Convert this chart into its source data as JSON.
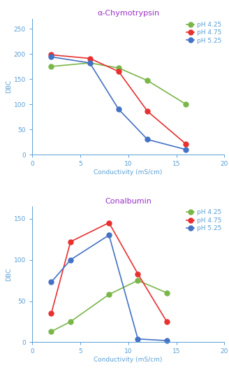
{
  "chart1": {
    "title": "α-Chymotrypsin",
    "series": [
      {
        "label": "pH 4.25",
        "color": "#7ab648",
        "x": [
          2,
          6,
          9,
          12,
          16
        ],
        "y": [
          175,
          182,
          172,
          147,
          100
        ]
      },
      {
        "label": "pH 4.75",
        "color": "#e83030",
        "x": [
          2,
          6,
          9,
          12,
          16
        ],
        "y": [
          198,
          191,
          165,
          86,
          21
        ]
      },
      {
        "label": "pH 5.25",
        "color": "#4472c4",
        "x": [
          2,
          6,
          9,
          12,
          16
        ],
        "y": [
          194,
          182,
          90,
          30,
          10
        ]
      }
    ],
    "xlim": [
      0,
      20
    ],
    "ylim": [
      0,
      270
    ],
    "xticks": [
      0,
      5,
      10,
      15,
      20
    ],
    "yticks": [
      0,
      50,
      100,
      150,
      200,
      250
    ],
    "xlabel": "Conductivity (mS/cm)",
    "ylabel": "DBC"
  },
  "chart2": {
    "title": "Conalbumin",
    "series": [
      {
        "label": "pH 4.25",
        "color": "#7ab648",
        "x": [
          2,
          4,
          8,
          11,
          14
        ],
        "y": [
          13,
          25,
          58,
          75,
          60
        ]
      },
      {
        "label": "pH 4.75",
        "color": "#e83030",
        "x": [
          2,
          4,
          8,
          11,
          14
        ],
        "y": [
          35,
          122,
          145,
          83,
          25
        ]
      },
      {
        "label": "pH 5.25",
        "color": "#4472c4",
        "x": [
          2,
          4,
          8,
          11,
          14
        ],
        "y": [
          73,
          100,
          130,
          4,
          2
        ]
      }
    ],
    "xlim": [
      0,
      20
    ],
    "ylim": [
      0,
      165
    ],
    "xticks": [
      0,
      5,
      10,
      15,
      20
    ],
    "yticks": [
      0,
      50,
      100,
      150
    ],
    "xlabel": "Conductivity (mS/cm)",
    "ylabel": "DBC"
  },
  "title_color": "#9b30c8",
  "tick_color": "#5a9fd4",
  "label_color": "#5a9fd4",
  "legend_fontsize": 6.5,
  "axis_fontsize": 6.5,
  "tick_fontsize": 6.5,
  "title_fontsize": 8,
  "marker_size": 5,
  "line_width": 1.2
}
